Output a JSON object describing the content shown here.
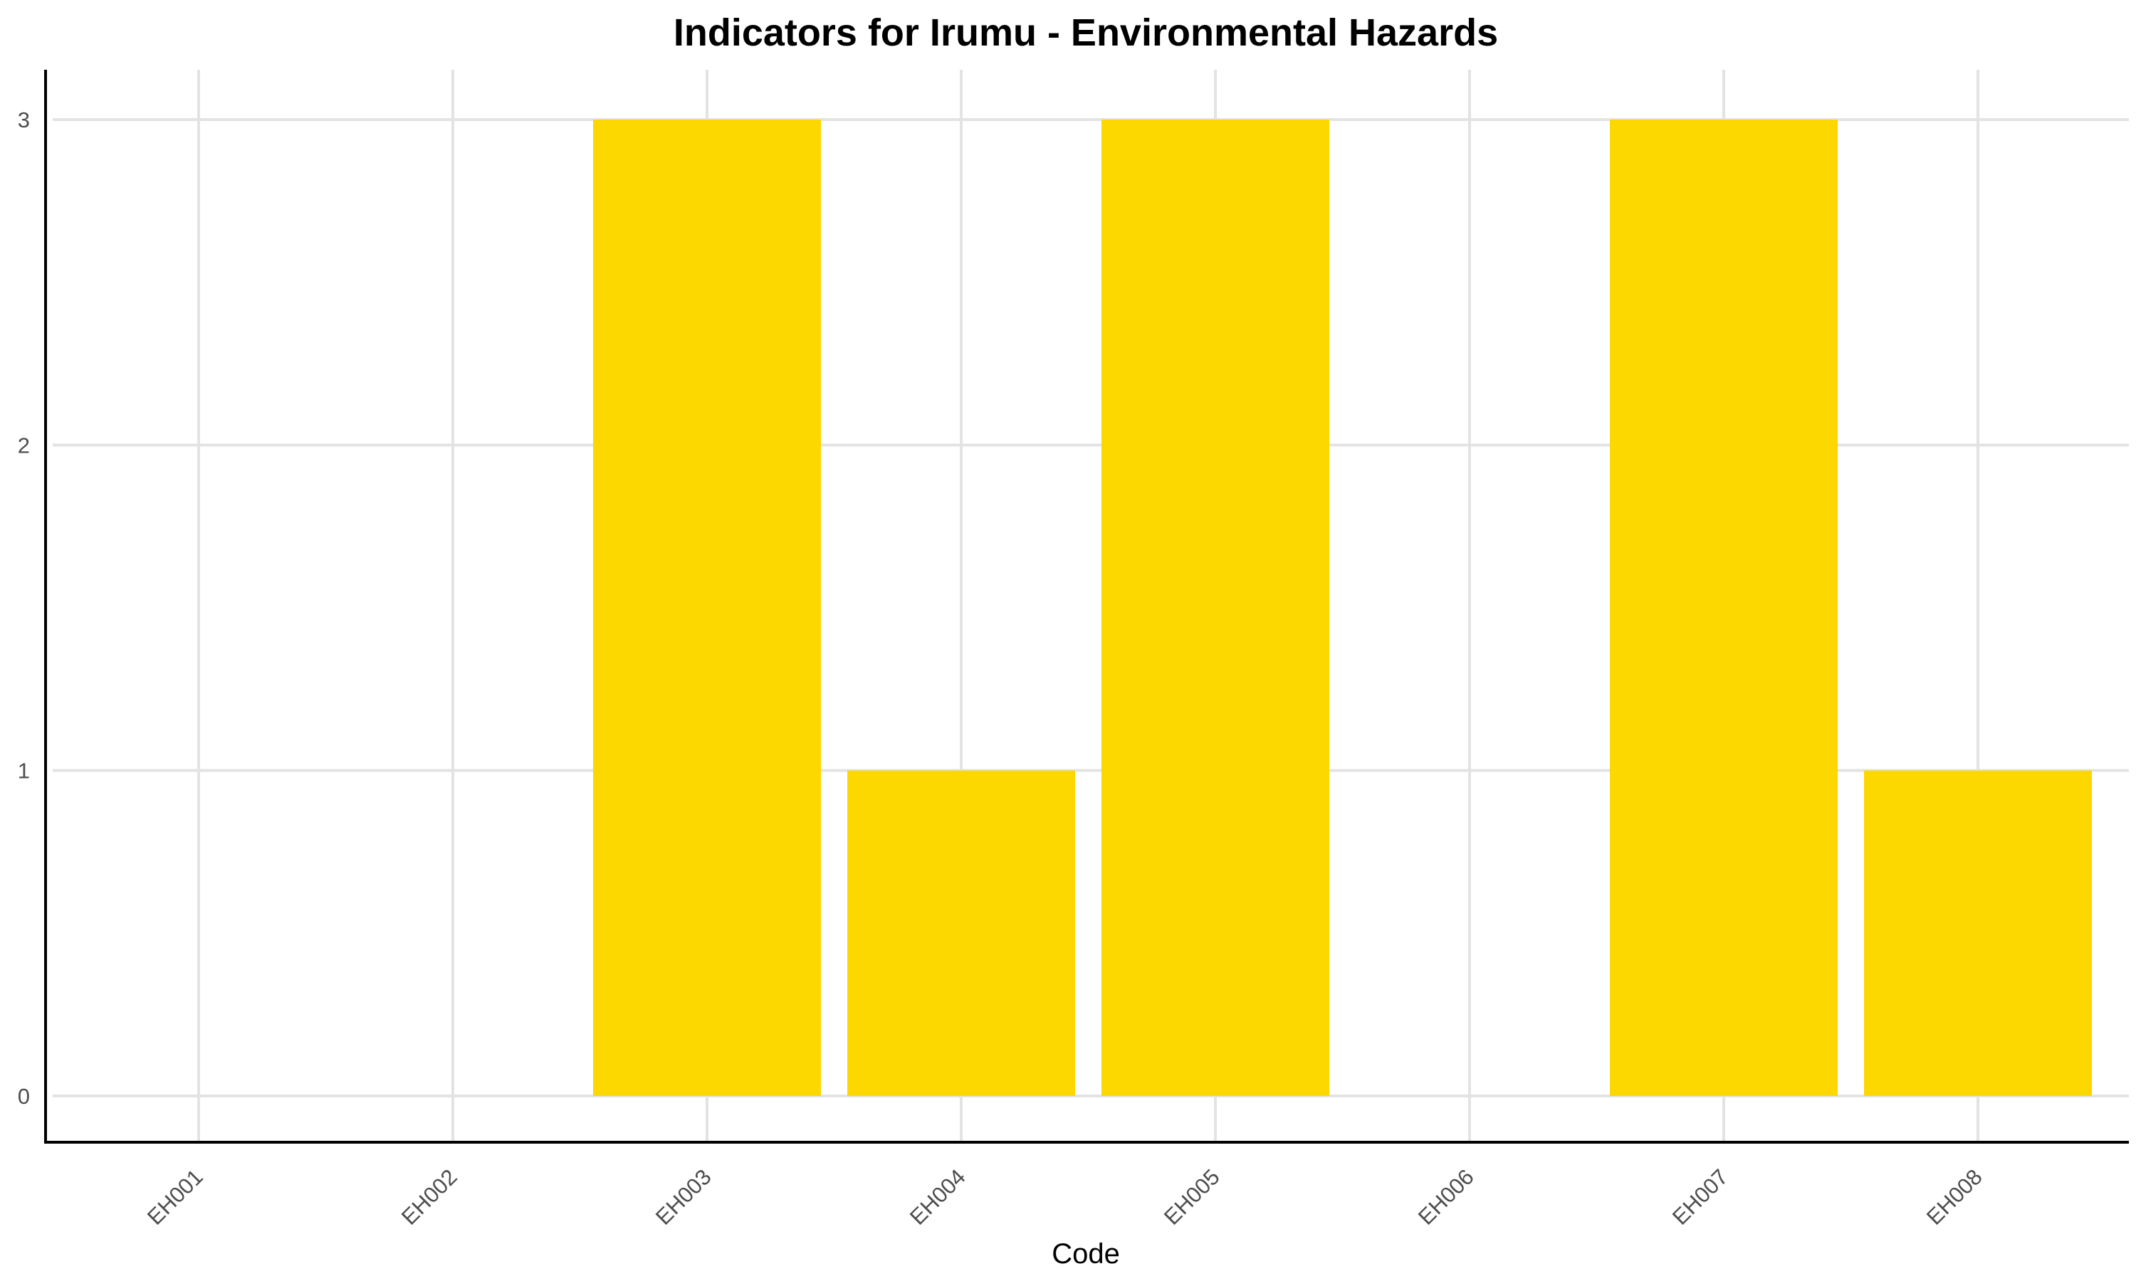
{
  "chart_data": {
    "type": "bar",
    "title": "Indicators for Irumu - Environmental Hazards",
    "xlabel": "Code",
    "ylabel": "",
    "categories": [
      "EH001",
      "EH002",
      "EH003",
      "EH004",
      "EH005",
      "EH006",
      "EH007",
      "EH008"
    ],
    "values": [
      0,
      0,
      3,
      1,
      3,
      0,
      3,
      1
    ],
    "ylim": [
      0,
      3
    ],
    "yticks": [
      "0",
      "1",
      "2",
      "3"
    ],
    "grid": true,
    "legend": "none",
    "bar_color": "#FDD700"
  }
}
